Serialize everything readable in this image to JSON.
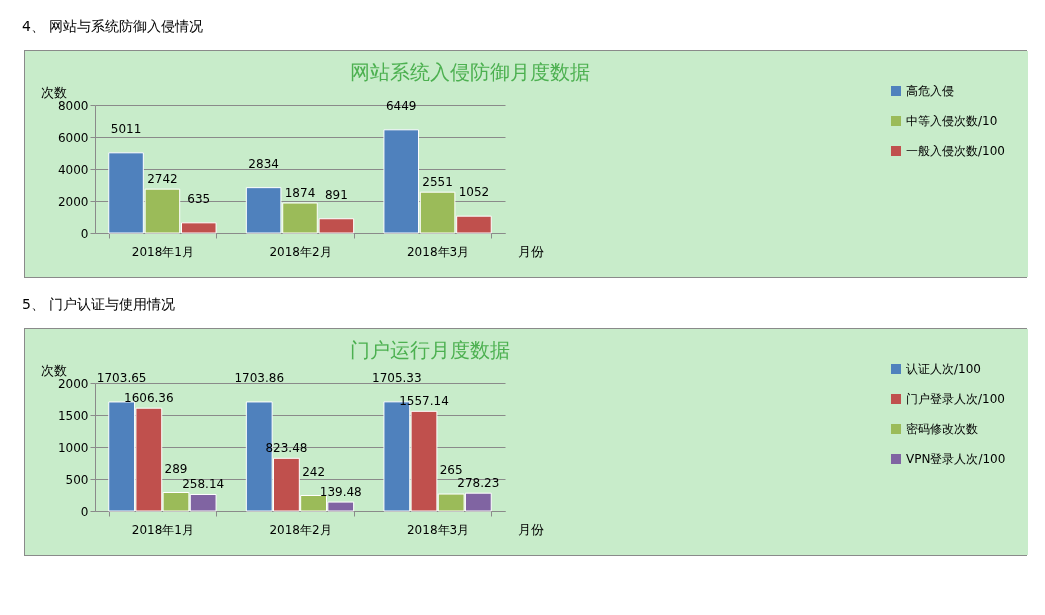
{
  "chart_data": [
    {
      "type": "bar",
      "title": "网站系统入侵防御月度数据",
      "annotations": [
        "4、 网站与系统防御入侵情况"
      ],
      "xlabel": "月份",
      "ylabel": "次数",
      "categories": [
        "2018年1月",
        "2018年2月",
        "2018年3月"
      ],
      "series": [
        {
          "name": "高危入侵",
          "color": "#4f81bd",
          "values": [
            5011,
            2834,
            6449
          ]
        },
        {
          "name": "中等入侵次数/10",
          "color": "#9bbb59",
          "values": [
            2742,
            1874,
            2551
          ]
        },
        {
          "name": "一般入侵次数/100",
          "color": "#c0504d",
          "values": [
            635,
            891,
            1052
          ]
        }
      ],
      "ylim": [
        0,
        8000
      ],
      "yticks": [
        0,
        2000,
        4000,
        6000,
        8000
      ],
      "grid": "y",
      "legend": "right",
      "data_labels": true
    },
    {
      "type": "bar",
      "title": "门户运行月度数据",
      "annotations": [
        "5、 门户认证与使用情况"
      ],
      "xlabel": "月份",
      "ylabel": "次数",
      "categories": [
        "2018年1月",
        "2018年2月",
        "2018年3月"
      ],
      "series": [
        {
          "name": "认证人次/100",
          "color": "#4f81bd",
          "values": [
            1703.65,
            1703.86,
            1705.33
          ]
        },
        {
          "name": "门户登录人次/100",
          "color": "#c0504d",
          "values": [
            1606.36,
            823.48,
            1557.14
          ]
        },
        {
          "name": "密码修改次数",
          "color": "#9bbb59",
          "values": [
            289,
            242,
            265
          ]
        },
        {
          "name": "VPN登录人次/100",
          "color": "#8064a2",
          "values": [
            258.14,
            139.48,
            278.23
          ]
        }
      ],
      "ylim": [
        0,
        2000
      ],
      "yticks": [
        0,
        500,
        1000,
        1500,
        2000
      ],
      "grid": "y",
      "legend": "right",
      "data_labels": true
    }
  ]
}
